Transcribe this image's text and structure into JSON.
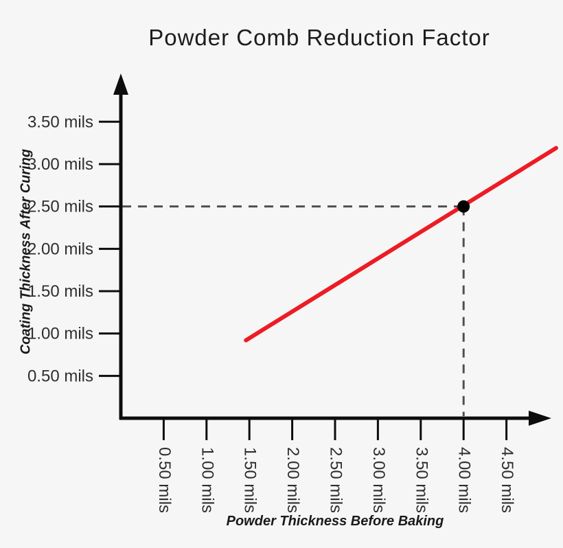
{
  "page": {
    "background": "#f6f6f6"
  },
  "chart_data": {
    "type": "line",
    "title": "Powder Comb Reduction Factor",
    "xlabel": "Powder Thickness Before Baking",
    "ylabel": "Coating Thickness After Curing",
    "xlim": [
      0,
      5.0
    ],
    "ylim": [
      0,
      4.07
    ],
    "grid": false,
    "legend": null,
    "axis_color": "#0d0d0d",
    "tick_label_color": "#2e2e2e",
    "x_ticks": [
      {
        "value": 0.5,
        "label": "0.50 mils"
      },
      {
        "value": 1.0,
        "label": "1.00 mils"
      },
      {
        "value": 1.5,
        "label": "1.50 mils"
      },
      {
        "value": 2.0,
        "label": "2.00 mils"
      },
      {
        "value": 2.5,
        "label": "2.50 mils"
      },
      {
        "value": 3.0,
        "label": "3.00 mils"
      },
      {
        "value": 3.5,
        "label": "3.50 mils"
      },
      {
        "value": 4.0,
        "label": "4.00 mils"
      },
      {
        "value": 4.5,
        "label": "4.50 mils"
      }
    ],
    "y_ticks": [
      {
        "value": 0.5,
        "label": "0.50 mils"
      },
      {
        "value": 1.0,
        "label": "1.00 mils"
      },
      {
        "value": 1.5,
        "label": "1.50 mils"
      },
      {
        "value": 2.0,
        "label": "2.00 mils"
      },
      {
        "value": 2.5,
        "label": "2.50 mils"
      },
      {
        "value": 3.0,
        "label": "3.00 mils"
      },
      {
        "value": 3.5,
        "label": "3.50 mils"
      }
    ],
    "series": [
      {
        "name": "reduction-factor-line",
        "color": "#ed1c24",
        "width": 6,
        "points": [
          [
            1.46,
            0.92
          ],
          [
            5.08,
            3.19
          ]
        ]
      }
    ],
    "annotation": {
      "point": {
        "x": 4.0,
        "y": 2.5
      },
      "marker_color": "#000000",
      "marker_radius": 9,
      "dash_color": "#4f4f4f",
      "dash_pattern": [
        13,
        10
      ],
      "dash_width": 3
    }
  }
}
